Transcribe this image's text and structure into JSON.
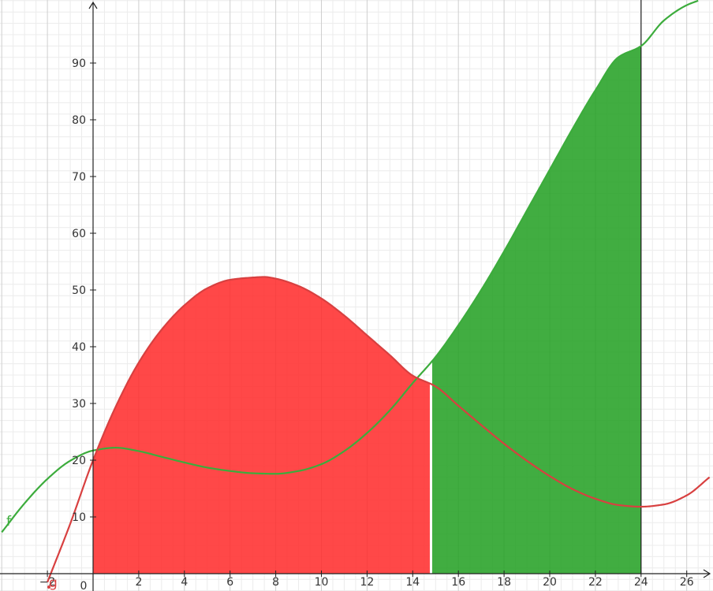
{
  "chart_data": {
    "type": "area",
    "xlim": [
      -4,
      27
    ],
    "ylim": [
      -3,
      101
    ],
    "grid": true,
    "x_ticks": [
      {
        "v": -2,
        "label": "−2"
      },
      {
        "v": 0,
        "label": "0"
      },
      {
        "v": 2,
        "label": "2"
      },
      {
        "v": 4,
        "label": "4"
      },
      {
        "v": 6,
        "label": "6"
      },
      {
        "v": 8,
        "label": "8"
      },
      {
        "v": 10,
        "label": "10"
      },
      {
        "v": 12,
        "label": "12"
      },
      {
        "v": 14,
        "label": "14"
      },
      {
        "v": 16,
        "label": "16"
      },
      {
        "v": 18,
        "label": "18"
      },
      {
        "v": 20,
        "label": "20"
      },
      {
        "v": 22,
        "label": "22"
      },
      {
        "v": 24,
        "label": "24"
      },
      {
        "v": 26,
        "label": "26"
      }
    ],
    "y_ticks": [
      {
        "v": 10,
        "label": "10"
      },
      {
        "v": 20,
        "label": "20"
      },
      {
        "v": 30,
        "label": "30"
      },
      {
        "v": 40,
        "label": "40"
      },
      {
        "v": 50,
        "label": "50"
      },
      {
        "v": 60,
        "label": "60"
      },
      {
        "v": 70,
        "label": "70"
      },
      {
        "v": 80,
        "label": "80"
      },
      {
        "v": 90,
        "label": "90"
      }
    ],
    "series": [
      {
        "name": "f",
        "color": "#3cac3c",
        "x": [
          -4,
          -3,
          -2,
          -1,
          0,
          1,
          2,
          3,
          4,
          5,
          6,
          7,
          8,
          9,
          10,
          11,
          12,
          13,
          14,
          15,
          16,
          17,
          18,
          19,
          20,
          21,
          22,
          23,
          24,
          25,
          26,
          26.5
        ],
        "y": [
          7.3,
          12.4,
          16.7,
          19.9,
          21.7,
          22.2,
          21.6,
          20.6,
          19.6,
          18.7,
          18.1,
          17.7,
          17.6,
          18.1,
          19.3,
          21.6,
          24.8,
          28.8,
          33.6,
          38.2,
          43.8,
          50.0,
          56.8,
          64.0,
          71.2,
          78.4,
          85.2,
          91.0,
          93.0,
          97.5,
          100.2,
          101.0
        ]
      },
      {
        "name": "g",
        "color": "#d84040",
        "x": [
          -2.0,
          -1,
          0,
          1,
          2,
          3,
          4,
          5,
          6,
          7,
          7.5,
          8,
          9,
          10,
          11,
          12,
          13,
          14,
          15,
          16,
          17,
          18,
          19,
          20,
          21,
          22,
          23,
          24,
          25,
          26,
          27
        ],
        "y": [
          -1.5,
          8.8,
          20.0,
          29.5,
          37.2,
          43.0,
          47.3,
          50.3,
          51.8,
          52.2,
          52.3,
          52.0,
          50.7,
          48.5,
          45.5,
          42.0,
          38.5,
          34.9,
          33.0,
          29.6,
          26.2,
          22.9,
          19.9,
          17.2,
          14.9,
          13.2,
          12.1,
          11.8,
          12.2,
          13.8,
          17.0
        ]
      }
    ],
    "shaded_regions": [
      {
        "from": 0,
        "to": 14.8,
        "curve": "g",
        "color": "#ff2a2a"
      },
      {
        "from": 14.8,
        "to": 24,
        "curve": "f",
        "color": "#22a022"
      }
    ],
    "vertical_lines": [
      14.8,
      24
    ]
  }
}
